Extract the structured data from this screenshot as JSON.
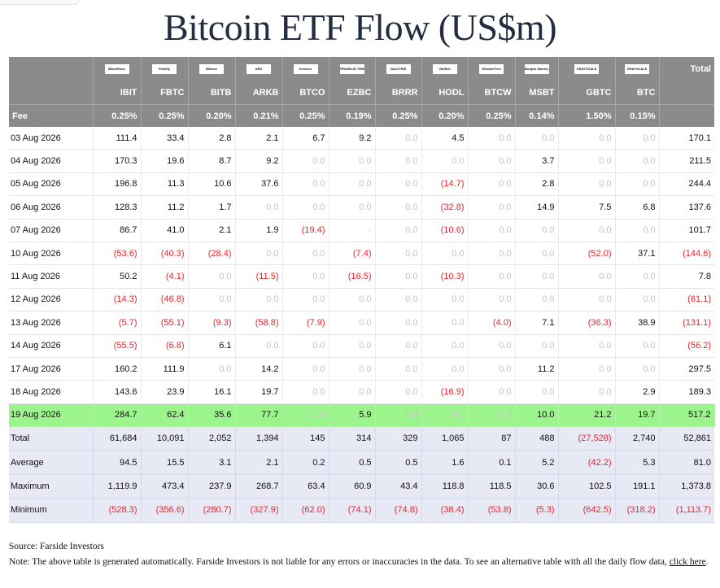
{
  "title": "Bitcoin ETF Flow (US$m)",
  "header": {
    "total_label": "Total",
    "fee_label": "Fee",
    "issuers": [
      "BlackRock",
      "Fidelity",
      "Bitwise",
      "ARK",
      "Invesco",
      "FRANKLIN TEMPLETON",
      "VALKYRIE",
      "VanEck",
      "WisdomTree",
      "Morgan Stanley",
      "GRAYSCALE",
      "GRAYSCALE"
    ],
    "tickers": [
      "IBIT",
      "FBTC",
      "BITB",
      "ARKB",
      "BTCO",
      "EZBC",
      "BRRR",
      "HODL",
      "BTCW",
      "MSBT",
      "GBTC",
      "BTC"
    ],
    "fees": [
      "0.25%",
      "0.25%",
      "0.20%",
      "0.21%",
      "0.25%",
      "0.19%",
      "0.25%",
      "0.20%",
      "0.25%",
      "0.14%",
      "1.50%",
      "0.15%"
    ]
  },
  "rows": [
    {
      "date": "03 Aug 2026",
      "values": [
        "111.4",
        "33.4",
        "2.8",
        "2.1",
        "6.7",
        "9.2",
        "0.0",
        "4.5",
        "0.0",
        "0.0",
        "0.0",
        "0.0"
      ],
      "total": "170.1"
    },
    {
      "date": "04 Aug 2026",
      "values": [
        "170.3",
        "19.6",
        "8.7",
        "9.2",
        "0.0",
        "0.0",
        "0.0",
        "0.0",
        "0.0",
        "3.7",
        "0.0",
        "0.0"
      ],
      "total": "211.5"
    },
    {
      "date": "05 Aug 2026",
      "values": [
        "196.8",
        "11.3",
        "10.6",
        "37.6",
        "0.0",
        "0.0",
        "0.0",
        "(14.7)",
        "0.0",
        "2.8",
        "0.0",
        "0.0"
      ],
      "total": "244.4"
    },
    {
      "date": "06 Aug 2026",
      "values": [
        "128.3",
        "11.2",
        "1.7",
        "0.0",
        "0.0",
        "0.0",
        "0.0",
        "(32.8)",
        "0.0",
        "14.9",
        "7.5",
        "6.8"
      ],
      "total": "137.6"
    },
    {
      "date": "07 Aug 2026",
      "values": [
        "86.7",
        "41.0",
        "2.1",
        "1.9",
        "(19.4)",
        "-",
        "0.0",
        "(10.6)",
        "0.0",
        "0.0",
        "0.0",
        "0.0"
      ],
      "total": "101.7"
    },
    {
      "date": "10 Aug 2026",
      "values": [
        "(53.6)",
        "(40.3)",
        "(28.4)",
        "0.0",
        "0.0",
        "(7.4)",
        "0.0",
        "0.0",
        "0.0",
        "0.0",
        "(52.0)",
        "37.1"
      ],
      "total": "(144.6)"
    },
    {
      "date": "11 Aug 2026",
      "values": [
        "50.2",
        "(4.1)",
        "0.0",
        "(11.5)",
        "0.0",
        "(16.5)",
        "0.0",
        "(10.3)",
        "0.0",
        "0.0",
        "0.0",
        "0.0"
      ],
      "total": "7.8"
    },
    {
      "date": "12 Aug 2026",
      "values": [
        "(14.3)",
        "(46.8)",
        "0.0",
        "0.0",
        "0.0",
        "0.0",
        "0.0",
        "0.0",
        "0.0",
        "0.0",
        "0.0",
        "0.0"
      ],
      "total": "(61.1)"
    },
    {
      "date": "13 Aug 2026",
      "values": [
        "(5.7)",
        "(55.1)",
        "(9.3)",
        "(58.8)",
        "(7.9)",
        "0.0",
        "0.0",
        "0.0",
        "(4.0)",
        "7.1",
        "(36.3)",
        "38.9"
      ],
      "total": "(131.1)"
    },
    {
      "date": "14 Aug 2026",
      "values": [
        "(55.5)",
        "(6.8)",
        "6.1",
        "0.0",
        "0.0",
        "0.0",
        "0.0",
        "0.0",
        "0.0",
        "0.0",
        "0.0",
        "0.0"
      ],
      "total": "(56.2)"
    },
    {
      "date": "17 Aug 2026",
      "values": [
        "160.2",
        "111.9",
        "0.0",
        "14.2",
        "0.0",
        "0.0",
        "0.0",
        "0.0",
        "0.0",
        "11.2",
        "0.0",
        "0.0"
      ],
      "total": "297.5"
    },
    {
      "date": "18 Aug 2026",
      "values": [
        "143.6",
        "23.9",
        "16.1",
        "19.7",
        "0.0",
        "0.0",
        "0.0",
        "(16.9)",
        "0.0",
        "0.0",
        "0.0",
        "2.9"
      ],
      "total": "189.3"
    },
    {
      "date": "19 Aug 2026",
      "values": [
        "284.7",
        "62.4",
        "35.6",
        "77.7",
        "0.0",
        "5.9",
        "0.0",
        "0.0",
        "0.0",
        "10.0",
        "21.2",
        "19.7"
      ],
      "total": "517.2"
    }
  ],
  "highlight_row": 12,
  "stats": [
    {
      "label": "Total",
      "values": [
        "61,684",
        "10,091",
        "2,052",
        "1,394",
        "145",
        "314",
        "329",
        "1,065",
        "87",
        "488",
        "(27,528)",
        "2,740"
      ],
      "total": "52,861"
    },
    {
      "label": "Average",
      "values": [
        "94.5",
        "15.5",
        "3.1",
        "2.1",
        "0.2",
        "0.5",
        "0.5",
        "1.6",
        "0.1",
        "5.2",
        "(42.2)",
        "5.3"
      ],
      "total": "81.0"
    },
    {
      "label": "Maximum",
      "values": [
        "1,119.9",
        "473.4",
        "237.9",
        "268.7",
        "63.4",
        "60.9",
        "43.4",
        "118.8",
        "118.5",
        "30.6",
        "102.5",
        "191.1"
      ],
      "total": "1,373.8"
    },
    {
      "label": "Minimum",
      "values": [
        "(528.3)",
        "(356.6)",
        "(280.7)",
        "(327.9)",
        "(62.0)",
        "(74.1)",
        "(74.8)",
        "(38.4)",
        "(53.8)",
        "(5.3)",
        "(642.5)",
        "(318.2)"
      ],
      "total": "(1,113.7)"
    }
  ],
  "colors": {
    "header_bg": "#8b8b8b",
    "negative": "#e8242a",
    "zero": "#c4c4c4",
    "highlight": "#9cf58c",
    "stats_bg": "#e7e9f5"
  },
  "footer": {
    "source": "Source: Farside Investors",
    "note": "Note: The above table is generated automatically. Farside Investors is not liable for any errors or inaccuracies in the data. To see an alternative table with all the daily flow data, ",
    "link_text": "click here",
    "note_end": "."
  }
}
